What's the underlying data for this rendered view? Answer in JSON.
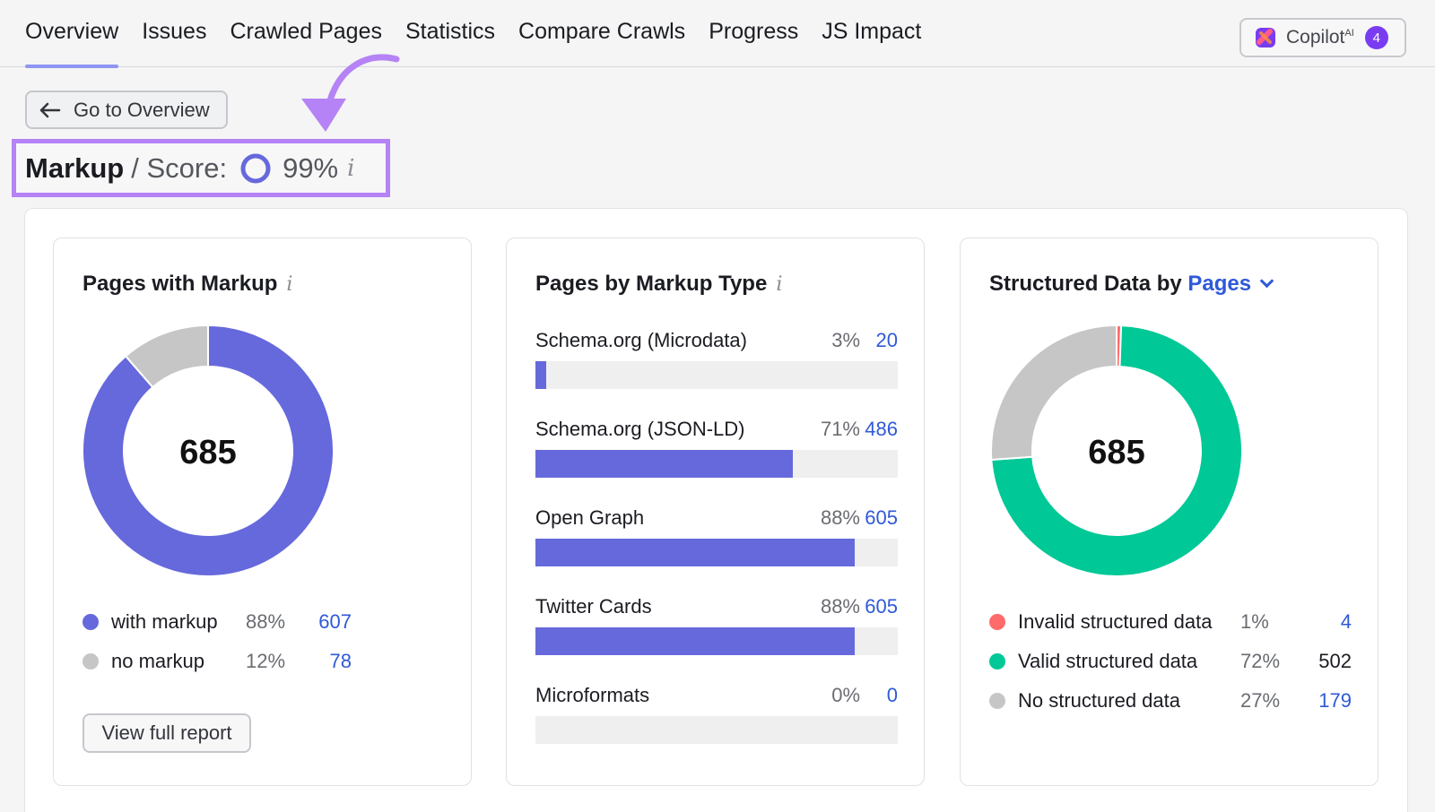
{
  "nav": {
    "tabs": [
      {
        "label": "Overview",
        "active": true
      },
      {
        "label": "Issues"
      },
      {
        "label": "Crawled Pages"
      },
      {
        "label": "Statistics"
      },
      {
        "label": "Compare Crawls"
      },
      {
        "label": "Progress"
      },
      {
        "label": "JS Impact"
      }
    ],
    "copilot": {
      "label": "Copilot",
      "sup": "AI",
      "badge": "4"
    }
  },
  "back_button": {
    "label": "Go to Overview"
  },
  "header": {
    "title": "Markup",
    "separator": "/ Score:",
    "score": "99%",
    "info": "i"
  },
  "colors": {
    "accent": "#6669dc",
    "valid": "#00c896",
    "invalid": "#ff6b6b",
    "none": "#c6c6c6",
    "highlight": "#b583f5",
    "link": "#2f59d8"
  },
  "card1": {
    "title": "Pages with Markup",
    "info": "i",
    "total": "685",
    "legend": [
      {
        "label": "with markup",
        "pct": "88%",
        "count": "607",
        "color": "#6669dc"
      },
      {
        "label": "no markup",
        "pct": "12%",
        "count": "78",
        "color": "#c6c6c6"
      }
    ],
    "button": "View full report"
  },
  "card2": {
    "title": "Pages by Markup Type",
    "info": "i",
    "rows": [
      {
        "label": "Schema.org (Microdata)",
        "pct": "3%",
        "count": "20",
        "fill": 0.03
      },
      {
        "label": "Schema.org (JSON-LD)",
        "pct": "71%",
        "count": "486",
        "fill": 0.71
      },
      {
        "label": "Open Graph",
        "pct": "88%",
        "count": "605",
        "fill": 0.88
      },
      {
        "label": "Twitter Cards",
        "pct": "88%",
        "count": "605",
        "fill": 0.88
      },
      {
        "label": "Microformats",
        "pct": "0%",
        "count": "0",
        "fill": 0
      }
    ]
  },
  "card3": {
    "title_prefix": "Structured Data by",
    "title_link": "Pages",
    "total": "685",
    "legend": [
      {
        "label": "Invalid structured data",
        "pct": "1%",
        "count": "4",
        "color": "#ff6b6b",
        "link": true
      },
      {
        "label": "Valid structured data",
        "pct": "72%",
        "count": "502",
        "color": "#00c896",
        "link": false
      },
      {
        "label": "No structured data",
        "pct": "27%",
        "count": "179",
        "color": "#c6c6c6",
        "link": true
      }
    ]
  },
  "chart_data": [
    {
      "type": "pie",
      "categories": [
        "with markup",
        "no markup"
      ],
      "values": [
        607,
        78
      ],
      "title": "Pages with Markup"
    },
    {
      "type": "bar",
      "categories": [
        "Schema.org (Microdata)",
        "Schema.org (JSON-LD)",
        "Open Graph",
        "Twitter Cards",
        "Microformats"
      ],
      "values": [
        20,
        486,
        605,
        605,
        0
      ],
      "title": "Pages by Markup Type"
    },
    {
      "type": "pie",
      "categories": [
        "Invalid structured data",
        "Valid structured data",
        "No structured data"
      ],
      "values": [
        4,
        502,
        179
      ],
      "title": "Structured Data by Pages"
    }
  ]
}
